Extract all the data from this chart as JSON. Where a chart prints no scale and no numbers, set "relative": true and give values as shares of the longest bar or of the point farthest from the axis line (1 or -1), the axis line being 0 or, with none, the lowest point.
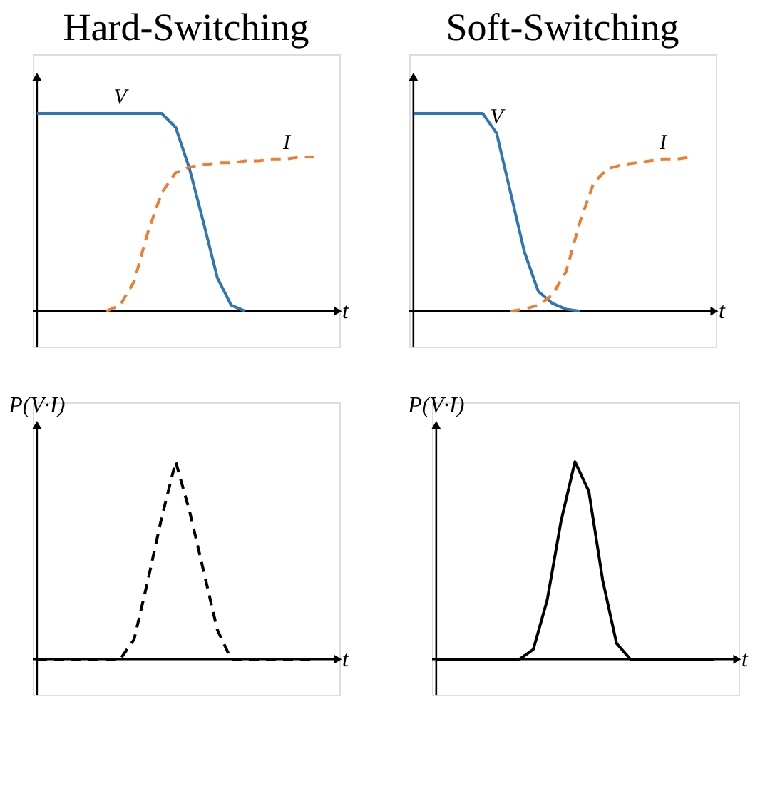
{
  "chart_data": [
    {
      "type": "line",
      "title": "Hard-Switching",
      "xlabel": "t",
      "relative": true,
      "categories": [
        null,
        null,
        null,
        null,
        null,
        null,
        null,
        null,
        null,
        null,
        null,
        null,
        null,
        null,
        null,
        null,
        null,
        null,
        null,
        null,
        null
      ],
      "series": [
        {
          "name": "V",
          "color": "#2e75b6",
          "line_style": "solid",
          "values": [
            1,
            1,
            1,
            1,
            1,
            1,
            1,
            1,
            1,
            1,
            0.93,
            0.72,
            0.45,
            0.17,
            0.03,
            0,
            null,
            null,
            null,
            null,
            null
          ]
        },
        {
          "name": "I",
          "color": "#ed7d31",
          "line_style": "dashed",
          "values": [
            null,
            null,
            null,
            null,
            null,
            0,
            0.03,
            0.15,
            0.4,
            0.6,
            0.7,
            0.73,
            0.74,
            0.75,
            0.75,
            0.76,
            0.76,
            0.77,
            0.77,
            0.78,
            0.78
          ]
        }
      ]
    },
    {
      "type": "line",
      "title": "Soft-Switching",
      "xlabel": "t",
      "relative": true,
      "categories": [
        null,
        null,
        null,
        null,
        null,
        null,
        null,
        null,
        null,
        null,
        null,
        null,
        null,
        null,
        null,
        null,
        null,
        null,
        null,
        null,
        null
      ],
      "series": [
        {
          "name": "V",
          "color": "#2e75b6",
          "line_style": "solid",
          "values": [
            1,
            1,
            1,
            1,
            1,
            1,
            0.9,
            0.6,
            0.3,
            0.1,
            0.04,
            0.01,
            0,
            null,
            null,
            null,
            null,
            null,
            null,
            null,
            null
          ]
        },
        {
          "name": "I",
          "color": "#ed7d31",
          "line_style": "dashed",
          "values": [
            null,
            null,
            null,
            null,
            null,
            null,
            null,
            0,
            0.01,
            0.03,
            0.08,
            0.2,
            0.45,
            0.65,
            0.72,
            0.74,
            0.75,
            0.76,
            0.77,
            0.77,
            0.78
          ]
        }
      ]
    },
    {
      "type": "line",
      "xlabel": "t",
      "ylabel": "P(V·I)",
      "relative": true,
      "categories": [
        null,
        null,
        null,
        null,
        null,
        null,
        null,
        null,
        null,
        null,
        null,
        null,
        null,
        null,
        null,
        null,
        null,
        null,
        null,
        null,
        null
      ],
      "series": [
        {
          "color": "#000000",
          "line_style": "dashed",
          "values": [
            0,
            0,
            0,
            0,
            0,
            0,
            0,
            0.1,
            0.4,
            0.72,
            1,
            0.75,
            0.45,
            0.15,
            0,
            0,
            0,
            0,
            0,
            0,
            0
          ]
        }
      ]
    },
    {
      "type": "line",
      "xlabel": "t",
      "ylabel": "P(V·I)",
      "relative": true,
      "categories": [
        null,
        null,
        null,
        null,
        null,
        null,
        null,
        null,
        null,
        null,
        null,
        null,
        null,
        null,
        null,
        null,
        null,
        null,
        null,
        null,
        null
      ],
      "series": [
        {
          "color": "#000000",
          "line_style": "solid",
          "values": [
            0,
            0,
            0,
            0,
            0,
            0,
            0,
            0.05,
            0.3,
            0.7,
            1,
            0.85,
            0.4,
            0.08,
            0,
            0,
            0,
            0,
            0,
            0,
            0
          ]
        }
      ]
    }
  ]
}
